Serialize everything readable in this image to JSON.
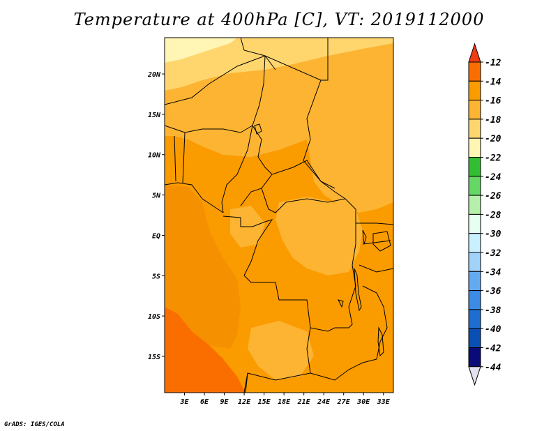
{
  "title": "Temperature at 400hPa [C], VT: 2019112000",
  "credit": "GrADS: IGES/COLA",
  "map": {
    "lon_range": [
      0,
      34.5
    ],
    "lat_range": [
      -19.5,
      24.5
    ],
    "lon_ticks": [
      "3E",
      "6E",
      "9E",
      "12E",
      "15E",
      "18E",
      "21E",
      "24E",
      "27E",
      "30E",
      "33E"
    ],
    "lon_tick_values": [
      3,
      6,
      9,
      12,
      15,
      18,
      21,
      24,
      27,
      30,
      33
    ],
    "lat_ticks": [
      "20N",
      "15N",
      "10N",
      "5N",
      "EQ",
      "5S",
      "10S",
      "15S"
    ],
    "lat_tick_values": [
      20,
      15,
      10,
      5,
      0,
      -5,
      -10,
      -15
    ]
  },
  "colorbar": {
    "labels": [
      "-12",
      "-14",
      "-16",
      "-18",
      "-20",
      "-22",
      "-24",
      "-26",
      "-28",
      "-30",
      "-32",
      "-34",
      "-36",
      "-38",
      "-40",
      "-42",
      "-44"
    ],
    "colors": [
      "#f03c14",
      "#fa6e00",
      "#fa9b00",
      "#fcb432",
      "#ffd66e",
      "#fff5b4",
      "#32be32",
      "#64d764",
      "#b4f0aa",
      "#e6fff0",
      "#c8f0ff",
      "#a0d2fa",
      "#64aaf0",
      "#3c8ce6",
      "#1e6ed2",
      "#0a50b4",
      "#0a0a78",
      "#e1e1f0"
    ]
  }
}
